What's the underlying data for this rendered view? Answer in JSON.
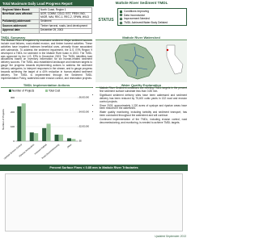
{
  "header": {
    "title": "Total Maximum Daily Load Progress Report",
    "subtitle": "Mattole River Sediment TMDL"
  },
  "info": {
    "rows": [
      [
        "Regional Water Board:",
        "North Coast, Region 1"
      ],
      [
        "Beneficial uses affected:",
        "AGR, COMM, COLD, EST, FRSH, IND, MIGR, NAV, REC-1, REC-2, SPWN, WILD"
      ],
      [
        "Pollutant(s) addressed:",
        "Sediment"
      ],
      [
        "Sources addressed:",
        "Timber harvest, roads, land development"
      ],
      [
        "Approval date:",
        "December 29, 2003"
      ]
    ]
  },
  "status": {
    "label": "STATUS",
    "options": [
      "Conditions Improving",
      "Data Inconclusive",
      "Improvement Needed",
      "TMDL Achieved/Water Body Delisted"
    ],
    "checked": [
      true,
      false,
      false,
      false
    ]
  },
  "summary": {
    "heading": "TMDL Summary",
    "text": "The Mattole River is impaired by excessive sediment. Major sediment sources include road failures, road-related erosion, and timber harvest activities. These activities have impaired instream beneficial uses, primarily those associated with salmonids. To address the sediment impairment, the U.S. EPA Region 9 developed a TMDL for sediment in the Mattole River basin in 2003. The TMDL was approved by the U.S. EPA in December 2003. The TMDL identifies load allocations based on inventory information for six human-related sediment delivery sources. The TMDL also established landscape and instream targets to gauge the progress towards implementing actions to address the sediment delivery categories, to interpret responses in the stream, and to gauge progress towards achieving the target of a 40% reduction in human-related sediment delivery. The TMDL is implemented through the Sediment TMDL Implementation Policy, watershed-wide erosion control, and restoration projects."
  },
  "map": {
    "heading": "Mattole River Watershed"
  },
  "implementation": {
    "heading": "TMDL Implementation Actions",
    "chart_data": {
      "type": "bar",
      "categories": [
        "Upslope Erosion Control",
        "Riparian Restoration",
        "Instream Habitat",
        "Road Decommissioning",
        "Other"
      ],
      "series": [
        {
          "name": "Number of Projects",
          "color": "#2e5e3e",
          "values": [
            240,
            60,
            90,
            45,
            20
          ]
        },
        {
          "name": "Total Cost",
          "color": "#9cc79c",
          "axis": "y2",
          "values": [
            5200000,
            1100000,
            2400000,
            900000,
            300000
          ]
        }
      ],
      "ylim": [
        0,
        300
      ],
      "yticks": [
        0,
        100,
        200,
        300
      ],
      "y2lim": [
        0,
        6000000
      ],
      "y2ticks": [
        {
          "value": 0,
          "label": "$0"
        },
        {
          "value": 2000000,
          "label": "$2,000,000"
        },
        {
          "value": 4000000,
          "label": "$4,000,000"
        },
        {
          "value": 6000000,
          "label": "$6,000,000"
        }
      ],
      "ylabel": "Number of Projects",
      "y2label": "Total Cost"
    }
  },
  "explanation": {
    "heading": "Water Quality Explanation",
    "bullets": [
      "Mattole River Sediment conditions are meeting TMDL targets in the percent fine sediment surface substrate less than 0.85 mm.",
      "Significant sediment delivery sites have been addressed and sediment delivery has been reduced by 75,400 cubic yards in 132 road and erosion control projects.",
      "Since 2003, approximately 1,220 acres of upslope and riparian areas have been restored in the watershed.",
      "Water quality monitoring, including turbidity and sediment transport, has been conducted throughout the watershed and will continue.",
      "Continued implementation of the TMDL, including erosion control, road decommissioning, and monitoring, is needed to achieve TMDL targets."
    ]
  },
  "fines": {
    "heading": "Percent Surface Fines < 0.85 mm in Mattole River Tributaries"
  },
  "footer": {
    "updated": "Updated September 2013"
  }
}
